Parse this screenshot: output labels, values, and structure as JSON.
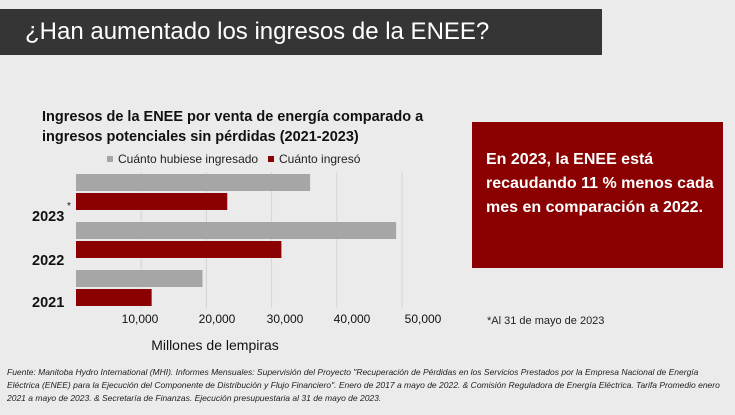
{
  "header": {
    "title": "¿Han aumentado los ingresos de la ENEE?"
  },
  "chart_data": {
    "type": "bar",
    "orientation": "horizontal",
    "title": "Ingresos de la ENEE por venta de energía comparado a ingresos potenciales sin pérdidas (2021-2023)",
    "categories": [
      "2023",
      "2022",
      "2021"
    ],
    "category_note": "*",
    "series": [
      {
        "name": "Cuánto hubiese ingresado",
        "color": "#a6a6a6",
        "values": [
          35900,
          49100,
          19400
        ]
      },
      {
        "name": "Cuánto ingresó",
        "color": "#8b0000",
        "values": [
          23200,
          31500,
          11600
        ]
      }
    ],
    "xlabel": "Millones de lempiras",
    "xticks": [
      "10,000",
      "20,000",
      "30,000",
      "40,000",
      "50,000"
    ],
    "xlim": [
      0,
      50000
    ],
    "grid": true,
    "legend": "top"
  },
  "callout": {
    "text": "En 2023, la ENEE está recaudando 11 % menos cada mes en  comparación a 2022.",
    "color": "#8b0000"
  },
  "note": "*Al 31 de mayo de 2023",
  "source": "Fuente: Manitoba Hydro International (MHI). Informes Mensuales: Supervisión del Proyecto \"Recuperación de Pérdidas en los Servicios Prestados por la Empresa Nacional de Energía Eléctrica (ENEE) para la Ejecución del Componente de Distribución y Flujo Financiero\". Enero de 2017 a mayo de 2022. & Comisión Reguladora de Energía Eléctrica. Tarifa Promedio enero 2021 a mayo de 2023. & Secretaría de Finanzas. Ejecución presupuestaria al 31 de mayo de 2023."
}
